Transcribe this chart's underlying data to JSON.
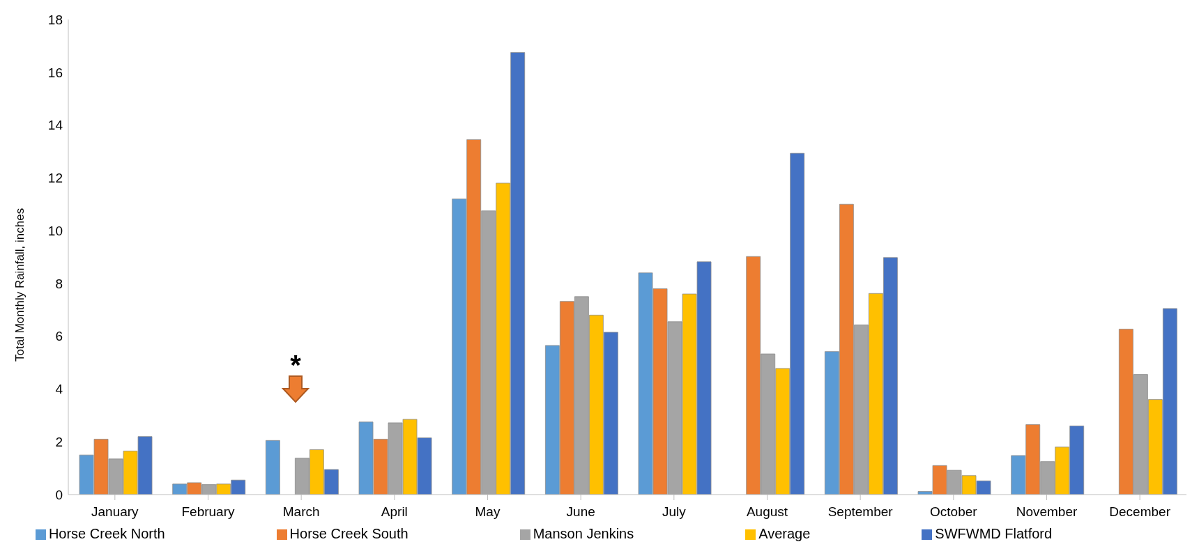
{
  "chart_data": {
    "type": "bar",
    "ylabel": "Total Monthly Rainfall, inches",
    "categories": [
      "January",
      "February",
      "March",
      "April",
      "May",
      "June",
      "July",
      "August",
      "September",
      "October",
      "November",
      "December"
    ],
    "series": [
      {
        "name": "Horse Creek North",
        "color": "#5b9bd5",
        "values": [
          1.5,
          0.4,
          2.05,
          2.75,
          11.2,
          5.65,
          8.4,
          null,
          5.42,
          0.12,
          1.48,
          null
        ]
      },
      {
        "name": "Horse Creek South",
        "color": "#ed7d31",
        "values": [
          2.1,
          0.45,
          null,
          2.1,
          13.45,
          7.32,
          7.8,
          9.02,
          11.0,
          1.1,
          2.65,
          6.27
        ]
      },
      {
        "name": "Manson Jenkins",
        "color": "#a5a5a5",
        "values": [
          1.35,
          0.38,
          1.38,
          2.72,
          10.75,
          7.5,
          6.55,
          5.33,
          6.43,
          0.92,
          1.25,
          4.55
        ]
      },
      {
        "name": "Average",
        "color": "#ffc000",
        "values": [
          1.65,
          0.4,
          1.7,
          2.85,
          11.8,
          6.8,
          7.6,
          4.78,
          7.62,
          0.72,
          1.8,
          3.6
        ]
      },
      {
        "name": "SWFWMD Flatford",
        "color": "#4472c4",
        "values": [
          2.2,
          0.55,
          0.95,
          2.15,
          16.75,
          6.15,
          8.82,
          12.93,
          8.98,
          0.52,
          2.6,
          7.05
        ]
      }
    ],
    "ylim": [
      0,
      18
    ],
    "yticks": [
      0,
      2,
      4,
      6,
      8,
      10,
      12,
      14,
      16,
      18
    ],
    "legend": "bottom",
    "annotations": [
      "*"
    ]
  }
}
